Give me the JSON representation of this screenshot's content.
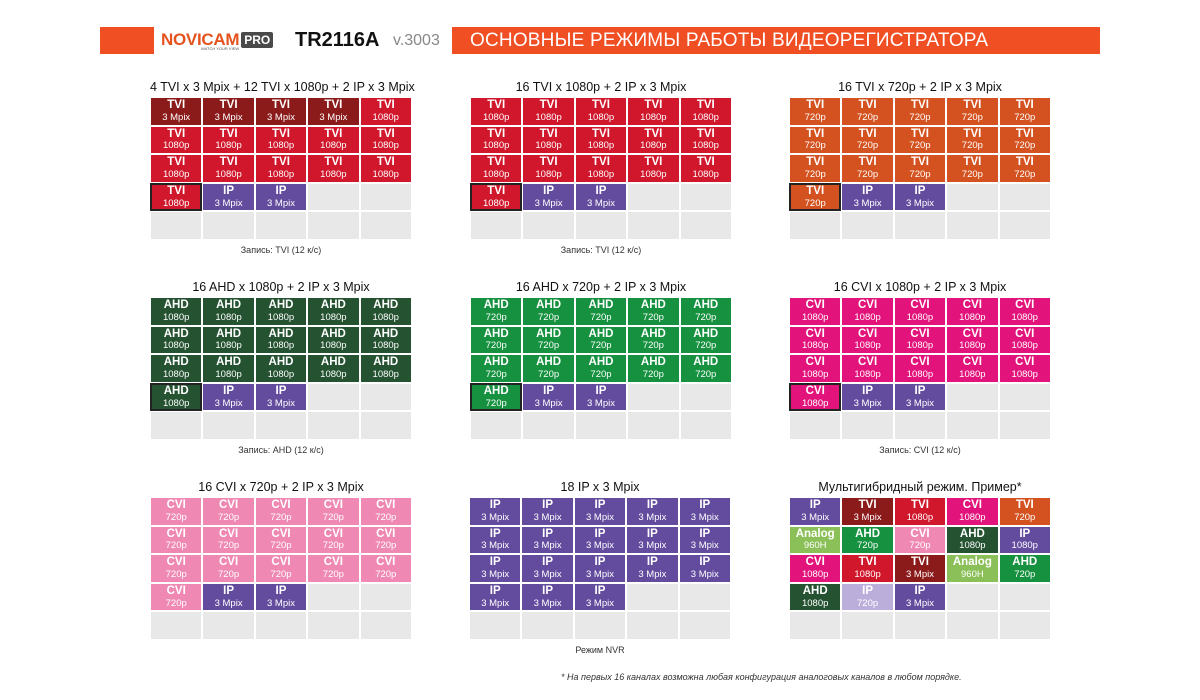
{
  "header": {
    "brand": "NOVICAM",
    "brand_pro": "PRO",
    "tagline": "WATCH YOUR VIEW",
    "model": "TR2116A",
    "version": "v.3003",
    "title": "ОСНОВНЫЕ РЕЖИМЫ РАБОТЫ ВИДЕОРЕГИСТРАТОРА"
  },
  "colors": {
    "header_bar": "#f04e23",
    "tvi_3mp": "#8b1a1a",
    "tvi_1080": "#d0172b",
    "tvi_720": "#d4521f",
    "ip_3mp": "#634c9e",
    "ip_720": "#bcaedb",
    "ahd_1080": "#255331",
    "ahd_720": "#15913f",
    "cvi_1080": "#e2137a",
    "cvi_720": "#ef89b3",
    "analog": "#8bbf58",
    "empty": "#e8e8e8"
  },
  "panels": [
    {
      "title": "4 TVI x 3 Mpix + 12 TVI x 1080p + 2 IP x 3 Mpix",
      "note": "Запись: TVI (12 к/с)",
      "cells": [
        {
          "type": "TVI",
          "res": "3 Mpix",
          "color": "#8b1a1a"
        },
        {
          "type": "TVI",
          "res": "3 Mpix",
          "color": "#8b1a1a"
        },
        {
          "type": "TVI",
          "res": "3 Mpix",
          "color": "#8b1a1a"
        },
        {
          "type": "TVI",
          "res": "3 Mpix",
          "color": "#8b1a1a"
        },
        {
          "type": "TVI",
          "res": "1080p",
          "color": "#d0172b"
        },
        {
          "type": "TVI",
          "res": "1080p",
          "color": "#d0172b"
        },
        {
          "type": "TVI",
          "res": "1080p",
          "color": "#d0172b"
        },
        {
          "type": "TVI",
          "res": "1080p",
          "color": "#d0172b"
        },
        {
          "type": "TVI",
          "res": "1080p",
          "color": "#d0172b"
        },
        {
          "type": "TVI",
          "res": "1080p",
          "color": "#d0172b"
        },
        {
          "type": "TVI",
          "res": "1080p",
          "color": "#d0172b"
        },
        {
          "type": "TVI",
          "res": "1080p",
          "color": "#d0172b"
        },
        {
          "type": "TVI",
          "res": "1080p",
          "color": "#d0172b"
        },
        {
          "type": "TVI",
          "res": "1080p",
          "color": "#d0172b"
        },
        {
          "type": "TVI",
          "res": "1080p",
          "color": "#d0172b"
        },
        {
          "type": "TVI",
          "res": "1080p",
          "color": "#d0172b",
          "dark_border": true
        },
        {
          "type": "IP",
          "res": "3 Mpix",
          "color": "#634c9e"
        },
        {
          "type": "IP",
          "res": "3 Mpix",
          "color": "#634c9e"
        },
        {},
        {},
        {},
        {},
        {},
        {},
        {}
      ]
    },
    {
      "title": "16 TVI x 1080p + 2 IP x 3 Mpix",
      "note": "Запись: TVI (12 к/с)",
      "cells": [
        {
          "type": "TVI",
          "res": "1080p",
          "color": "#d0172b"
        },
        {
          "type": "TVI",
          "res": "1080p",
          "color": "#d0172b"
        },
        {
          "type": "TVI",
          "res": "1080p",
          "color": "#d0172b"
        },
        {
          "type": "TVI",
          "res": "1080p",
          "color": "#d0172b"
        },
        {
          "type": "TVI",
          "res": "1080p",
          "color": "#d0172b"
        },
        {
          "type": "TVI",
          "res": "1080p",
          "color": "#d0172b"
        },
        {
          "type": "TVI",
          "res": "1080p",
          "color": "#d0172b"
        },
        {
          "type": "TVI",
          "res": "1080p",
          "color": "#d0172b"
        },
        {
          "type": "TVI",
          "res": "1080p",
          "color": "#d0172b"
        },
        {
          "type": "TVI",
          "res": "1080p",
          "color": "#d0172b"
        },
        {
          "type": "TVI",
          "res": "1080p",
          "color": "#d0172b"
        },
        {
          "type": "TVI",
          "res": "1080p",
          "color": "#d0172b"
        },
        {
          "type": "TVI",
          "res": "1080p",
          "color": "#d0172b"
        },
        {
          "type": "TVI",
          "res": "1080p",
          "color": "#d0172b"
        },
        {
          "type": "TVI",
          "res": "1080p",
          "color": "#d0172b"
        },
        {
          "type": "TVI",
          "res": "1080p",
          "color": "#d0172b",
          "dark_border": true
        },
        {
          "type": "IP",
          "res": "3 Mpix",
          "color": "#634c9e"
        },
        {
          "type": "IP",
          "res": "3 Mpix",
          "color": "#634c9e"
        },
        {},
        {},
        {},
        {},
        {},
        {},
        {}
      ]
    },
    {
      "title": "16 TVI x 720p + 2 IP x 3 Mpix",
      "note": "",
      "cells": [
        {
          "type": "TVI",
          "res": "720p",
          "color": "#d4521f"
        },
        {
          "type": "TVI",
          "res": "720p",
          "color": "#d4521f"
        },
        {
          "type": "TVI",
          "res": "720p",
          "color": "#d4521f"
        },
        {
          "type": "TVI",
          "res": "720p",
          "color": "#d4521f"
        },
        {
          "type": "TVI",
          "res": "720p",
          "color": "#d4521f"
        },
        {
          "type": "TVI",
          "res": "720p",
          "color": "#d4521f"
        },
        {
          "type": "TVI",
          "res": "720p",
          "color": "#d4521f"
        },
        {
          "type": "TVI",
          "res": "720p",
          "color": "#d4521f"
        },
        {
          "type": "TVI",
          "res": "720p",
          "color": "#d4521f"
        },
        {
          "type": "TVI",
          "res": "720p",
          "color": "#d4521f"
        },
        {
          "type": "TVI",
          "res": "720p",
          "color": "#d4521f"
        },
        {
          "type": "TVI",
          "res": "720p",
          "color": "#d4521f"
        },
        {
          "type": "TVI",
          "res": "720p",
          "color": "#d4521f"
        },
        {
          "type": "TVI",
          "res": "720p",
          "color": "#d4521f"
        },
        {
          "type": "TVI",
          "res": "720p",
          "color": "#d4521f"
        },
        {
          "type": "TVI",
          "res": "720p",
          "color": "#d4521f",
          "dark_border": true
        },
        {
          "type": "IP",
          "res": "3 Mpix",
          "color": "#634c9e"
        },
        {
          "type": "IP",
          "res": "3 Mpix",
          "color": "#634c9e"
        },
        {},
        {},
        {},
        {},
        {},
        {},
        {}
      ]
    },
    {
      "title": "16 AHD x 1080p + 2 IP x 3 Mpix",
      "note": "Запись: AHD (12 к/с)",
      "cells": [
        {
          "type": "AHD",
          "res": "1080p",
          "color": "#255331"
        },
        {
          "type": "AHD",
          "res": "1080p",
          "color": "#255331"
        },
        {
          "type": "AHD",
          "res": "1080p",
          "color": "#255331"
        },
        {
          "type": "AHD",
          "res": "1080p",
          "color": "#255331"
        },
        {
          "type": "AHD",
          "res": "1080p",
          "color": "#255331"
        },
        {
          "type": "AHD",
          "res": "1080p",
          "color": "#255331"
        },
        {
          "type": "AHD",
          "res": "1080p",
          "color": "#255331"
        },
        {
          "type": "AHD",
          "res": "1080p",
          "color": "#255331"
        },
        {
          "type": "AHD",
          "res": "1080p",
          "color": "#255331"
        },
        {
          "type": "AHD",
          "res": "1080p",
          "color": "#255331"
        },
        {
          "type": "AHD",
          "res": "1080p",
          "color": "#255331"
        },
        {
          "type": "AHD",
          "res": "1080p",
          "color": "#255331"
        },
        {
          "type": "AHD",
          "res": "1080p",
          "color": "#255331"
        },
        {
          "type": "AHD",
          "res": "1080p",
          "color": "#255331"
        },
        {
          "type": "AHD",
          "res": "1080p",
          "color": "#255331"
        },
        {
          "type": "AHD",
          "res": "1080p",
          "color": "#255331",
          "dark_border": true
        },
        {
          "type": "IP",
          "res": "3 Mpix",
          "color": "#634c9e"
        },
        {
          "type": "IP",
          "res": "3 Mpix",
          "color": "#634c9e"
        },
        {},
        {},
        {},
        {},
        {},
        {},
        {}
      ]
    },
    {
      "title": "16 AHD x 720p + 2 IP x 3 Mpix",
      "note": "",
      "cells": [
        {
          "type": "AHD",
          "res": "720p",
          "color": "#15913f"
        },
        {
          "type": "AHD",
          "res": "720p",
          "color": "#15913f"
        },
        {
          "type": "AHD",
          "res": "720p",
          "color": "#15913f"
        },
        {
          "type": "AHD",
          "res": "720p",
          "color": "#15913f"
        },
        {
          "type": "AHD",
          "res": "720p",
          "color": "#15913f"
        },
        {
          "type": "AHD",
          "res": "720p",
          "color": "#15913f"
        },
        {
          "type": "AHD",
          "res": "720p",
          "color": "#15913f"
        },
        {
          "type": "AHD",
          "res": "720p",
          "color": "#15913f"
        },
        {
          "type": "AHD",
          "res": "720p",
          "color": "#15913f"
        },
        {
          "type": "AHD",
          "res": "720p",
          "color": "#15913f"
        },
        {
          "type": "AHD",
          "res": "720p",
          "color": "#15913f"
        },
        {
          "type": "AHD",
          "res": "720p",
          "color": "#15913f"
        },
        {
          "type": "AHD",
          "res": "720p",
          "color": "#15913f"
        },
        {
          "type": "AHD",
          "res": "720p",
          "color": "#15913f"
        },
        {
          "type": "AHD",
          "res": "720p",
          "color": "#15913f"
        },
        {
          "type": "AHD",
          "res": "720p",
          "color": "#15913f",
          "dark_border": true
        },
        {
          "type": "IP",
          "res": "3 Mpix",
          "color": "#634c9e"
        },
        {
          "type": "IP",
          "res": "3 Mpix",
          "color": "#634c9e"
        },
        {},
        {},
        {},
        {},
        {},
        {},
        {}
      ]
    },
    {
      "title": "16 CVI x 1080p + 2 IP x 3 Mpix",
      "note": "Запись: CVI (12 к/с)",
      "cells": [
        {
          "type": "CVI",
          "res": "1080p",
          "color": "#e2137a"
        },
        {
          "type": "CVI",
          "res": "1080p",
          "color": "#e2137a"
        },
        {
          "type": "CVI",
          "res": "1080p",
          "color": "#e2137a"
        },
        {
          "type": "CVI",
          "res": "1080p",
          "color": "#e2137a"
        },
        {
          "type": "CVI",
          "res": "1080p",
          "color": "#e2137a"
        },
        {
          "type": "CVI",
          "res": "1080p",
          "color": "#e2137a"
        },
        {
          "type": "CVI",
          "res": "1080p",
          "color": "#e2137a"
        },
        {
          "type": "CVI",
          "res": "1080p",
          "color": "#e2137a"
        },
        {
          "type": "CVI",
          "res": "1080p",
          "color": "#e2137a"
        },
        {
          "type": "CVI",
          "res": "1080p",
          "color": "#e2137a"
        },
        {
          "type": "CVI",
          "res": "1080p",
          "color": "#e2137a"
        },
        {
          "type": "CVI",
          "res": "1080p",
          "color": "#e2137a"
        },
        {
          "type": "CVI",
          "res": "1080p",
          "color": "#e2137a"
        },
        {
          "type": "CVI",
          "res": "1080p",
          "color": "#e2137a"
        },
        {
          "type": "CVI",
          "res": "1080p",
          "color": "#e2137a"
        },
        {
          "type": "CVI",
          "res": "1080p",
          "color": "#e2137a",
          "dark_border": true
        },
        {
          "type": "IP",
          "res": "3 Mpix",
          "color": "#634c9e"
        },
        {
          "type": "IP",
          "res": "3 Mpix",
          "color": "#634c9e"
        },
        {},
        {},
        {},
        {},
        {},
        {},
        {}
      ]
    },
    {
      "title": "16 CVI x 720p + 2 IP x 3 Mpix",
      "note": "",
      "cells": [
        {
          "type": "CVI",
          "res": "720p",
          "color": "#ef89b3"
        },
        {
          "type": "CVI",
          "res": "720p",
          "color": "#ef89b3"
        },
        {
          "type": "CVI",
          "res": "720p",
          "color": "#ef89b3"
        },
        {
          "type": "CVI",
          "res": "720p",
          "color": "#ef89b3"
        },
        {
          "type": "CVI",
          "res": "720p",
          "color": "#ef89b3"
        },
        {
          "type": "CVI",
          "res": "720p",
          "color": "#ef89b3"
        },
        {
          "type": "CVI",
          "res": "720p",
          "color": "#ef89b3"
        },
        {
          "type": "CVI",
          "res": "720p",
          "color": "#ef89b3"
        },
        {
          "type": "CVI",
          "res": "720p",
          "color": "#ef89b3"
        },
        {
          "type": "CVI",
          "res": "720p",
          "color": "#ef89b3"
        },
        {
          "type": "CVI",
          "res": "720p",
          "color": "#ef89b3"
        },
        {
          "type": "CVI",
          "res": "720p",
          "color": "#ef89b3"
        },
        {
          "type": "CVI",
          "res": "720p",
          "color": "#ef89b3"
        },
        {
          "type": "CVI",
          "res": "720p",
          "color": "#ef89b3"
        },
        {
          "type": "CVI",
          "res": "720p",
          "color": "#ef89b3"
        },
        {
          "type": "CVI",
          "res": "720p",
          "color": "#ef89b3"
        },
        {
          "type": "IP",
          "res": "3 Mpix",
          "color": "#634c9e"
        },
        {
          "type": "IP",
          "res": "3 Mpix",
          "color": "#634c9e"
        },
        {},
        {},
        {},
        {},
        {},
        {},
        {}
      ]
    },
    {
      "title": "18 IP x 3 Mpix",
      "note": "Режим NVR",
      "cells": [
        {
          "type": "IP",
          "res": "3 Mpix",
          "color": "#634c9e"
        },
        {
          "type": "IP",
          "res": "3 Mpix",
          "color": "#634c9e"
        },
        {
          "type": "IP",
          "res": "3 Mpix",
          "color": "#634c9e"
        },
        {
          "type": "IP",
          "res": "3 Mpix",
          "color": "#634c9e"
        },
        {
          "type": "IP",
          "res": "3 Mpix",
          "color": "#634c9e"
        },
        {
          "type": "IP",
          "res": "3 Mpix",
          "color": "#634c9e"
        },
        {
          "type": "IP",
          "res": "3 Mpix",
          "color": "#634c9e"
        },
        {
          "type": "IP",
          "res": "3 Mpix",
          "color": "#634c9e"
        },
        {
          "type": "IP",
          "res": "3 Mpix",
          "color": "#634c9e"
        },
        {
          "type": "IP",
          "res": "3 Mpix",
          "color": "#634c9e"
        },
        {
          "type": "IP",
          "res": "3 Mpix",
          "color": "#634c9e"
        },
        {
          "type": "IP",
          "res": "3 Mpix",
          "color": "#634c9e"
        },
        {
          "type": "IP",
          "res": "3 Mpix",
          "color": "#634c9e"
        },
        {
          "type": "IP",
          "res": "3 Mpix",
          "color": "#634c9e"
        },
        {
          "type": "IP",
          "res": "3 Mpix",
          "color": "#634c9e"
        },
        {
          "type": "IP",
          "res": "3 Mpix",
          "color": "#634c9e"
        },
        {
          "type": "IP",
          "res": "3 Mpix",
          "color": "#634c9e"
        },
        {
          "type": "IP",
          "res": "3 Mpix",
          "color": "#634c9e"
        },
        {},
        {},
        {},
        {},
        {},
        {},
        {}
      ]
    },
    {
      "title": "Мультигибридный режим. Пример*",
      "note": "",
      "cells": [
        {
          "type": "IP",
          "res": "3 Mpix",
          "color": "#634c9e"
        },
        {
          "type": "TVI",
          "res": "3 Mpix",
          "color": "#8b1a1a"
        },
        {
          "type": "TVI",
          "res": "1080p",
          "color": "#d0172b"
        },
        {
          "type": "CVI",
          "res": "1080p",
          "color": "#e2137a"
        },
        {
          "type": "TVI",
          "res": "720p",
          "color": "#d4521f"
        },
        {
          "type": "Analog",
          "res": "960H",
          "color": "#8bbf58"
        },
        {
          "type": "AHD",
          "res": "720p",
          "color": "#15913f"
        },
        {
          "type": "CVI",
          "res": "720p",
          "color": "#ef89b3"
        },
        {
          "type": "AHD",
          "res": "1080p",
          "color": "#255331"
        },
        {
          "type": "IP",
          "res": "1080p",
          "color": "#634c9e"
        },
        {
          "type": "CVI",
          "res": "1080p",
          "color": "#e2137a"
        },
        {
          "type": "TVI",
          "res": "1080p",
          "color": "#d0172b"
        },
        {
          "type": "TVI",
          "res": "3 Mpix",
          "color": "#8b1a1a"
        },
        {
          "type": "Analog",
          "res": "960H",
          "color": "#8bbf58"
        },
        {
          "type": "AHD",
          "res": "720p",
          "color": "#15913f"
        },
        {
          "type": "AHD",
          "res": "1080p",
          "color": "#255331"
        },
        {
          "type": "IP",
          "res": "720p",
          "color": "#bcaedb"
        },
        {
          "type": "IP",
          "res": "3 Mpix",
          "color": "#634c9e"
        },
        {},
        {},
        {},
        {},
        {},
        {},
        {}
      ]
    }
  ],
  "footnote": "* На первых 16 каналах возможна любая конфигурация аналоговых каналов в любом порядке."
}
